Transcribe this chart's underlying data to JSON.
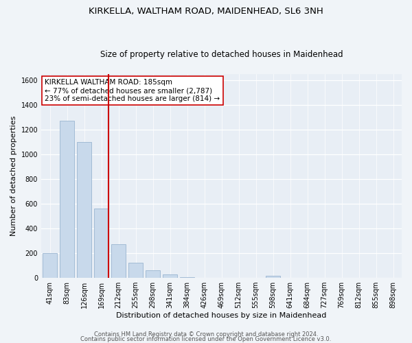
{
  "title": "KIRKELLA, WALTHAM ROAD, MAIDENHEAD, SL6 3NH",
  "subtitle": "Size of property relative to detached houses in Maidenhead",
  "xlabel": "Distribution of detached houses by size in Maidenhead",
  "ylabel": "Number of detached properties",
  "bar_labels": [
    "41sqm",
    "83sqm",
    "126sqm",
    "169sqm",
    "212sqm",
    "255sqm",
    "298sqm",
    "341sqm",
    "384sqm",
    "426sqm",
    "469sqm",
    "512sqm",
    "555sqm",
    "598sqm",
    "641sqm",
    "684sqm",
    "727sqm",
    "769sqm",
    "812sqm",
    "855sqm",
    "898sqm"
  ],
  "bar_values": [
    200,
    1275,
    1100,
    560,
    275,
    125,
    60,
    30,
    5,
    0,
    0,
    0,
    0,
    15,
    0,
    0,
    0,
    0,
    0,
    0,
    0
  ],
  "bar_color": "#c8d9eb",
  "bar_edge_color": "#9ab5d0",
  "vline_color": "#cc0000",
  "annotation_text": "KIRKELLA WALTHAM ROAD: 185sqm\n← 77% of detached houses are smaller (2,787)\n23% of semi-detached houses are larger (814) →",
  "annotation_box_color": "#ffffff",
  "annotation_box_edge": "#cc0000",
  "ylim": [
    0,
    1650
  ],
  "yticks": [
    0,
    200,
    400,
    600,
    800,
    1000,
    1200,
    1400,
    1600
  ],
  "footer1": "Contains HM Land Registry data © Crown copyright and database right 2024.",
  "footer2": "Contains public sector information licensed under the Open Government Licence v3.0.",
  "fig_bg": "#f0f4f8",
  "plot_bg": "#e8eef5",
  "grid_color": "#ffffff",
  "title_fontsize": 9.5,
  "subtitle_fontsize": 8.5,
  "axis_label_fontsize": 8,
  "tick_fontsize": 7,
  "annot_fontsize": 7.5,
  "footer_fontsize": 6
}
